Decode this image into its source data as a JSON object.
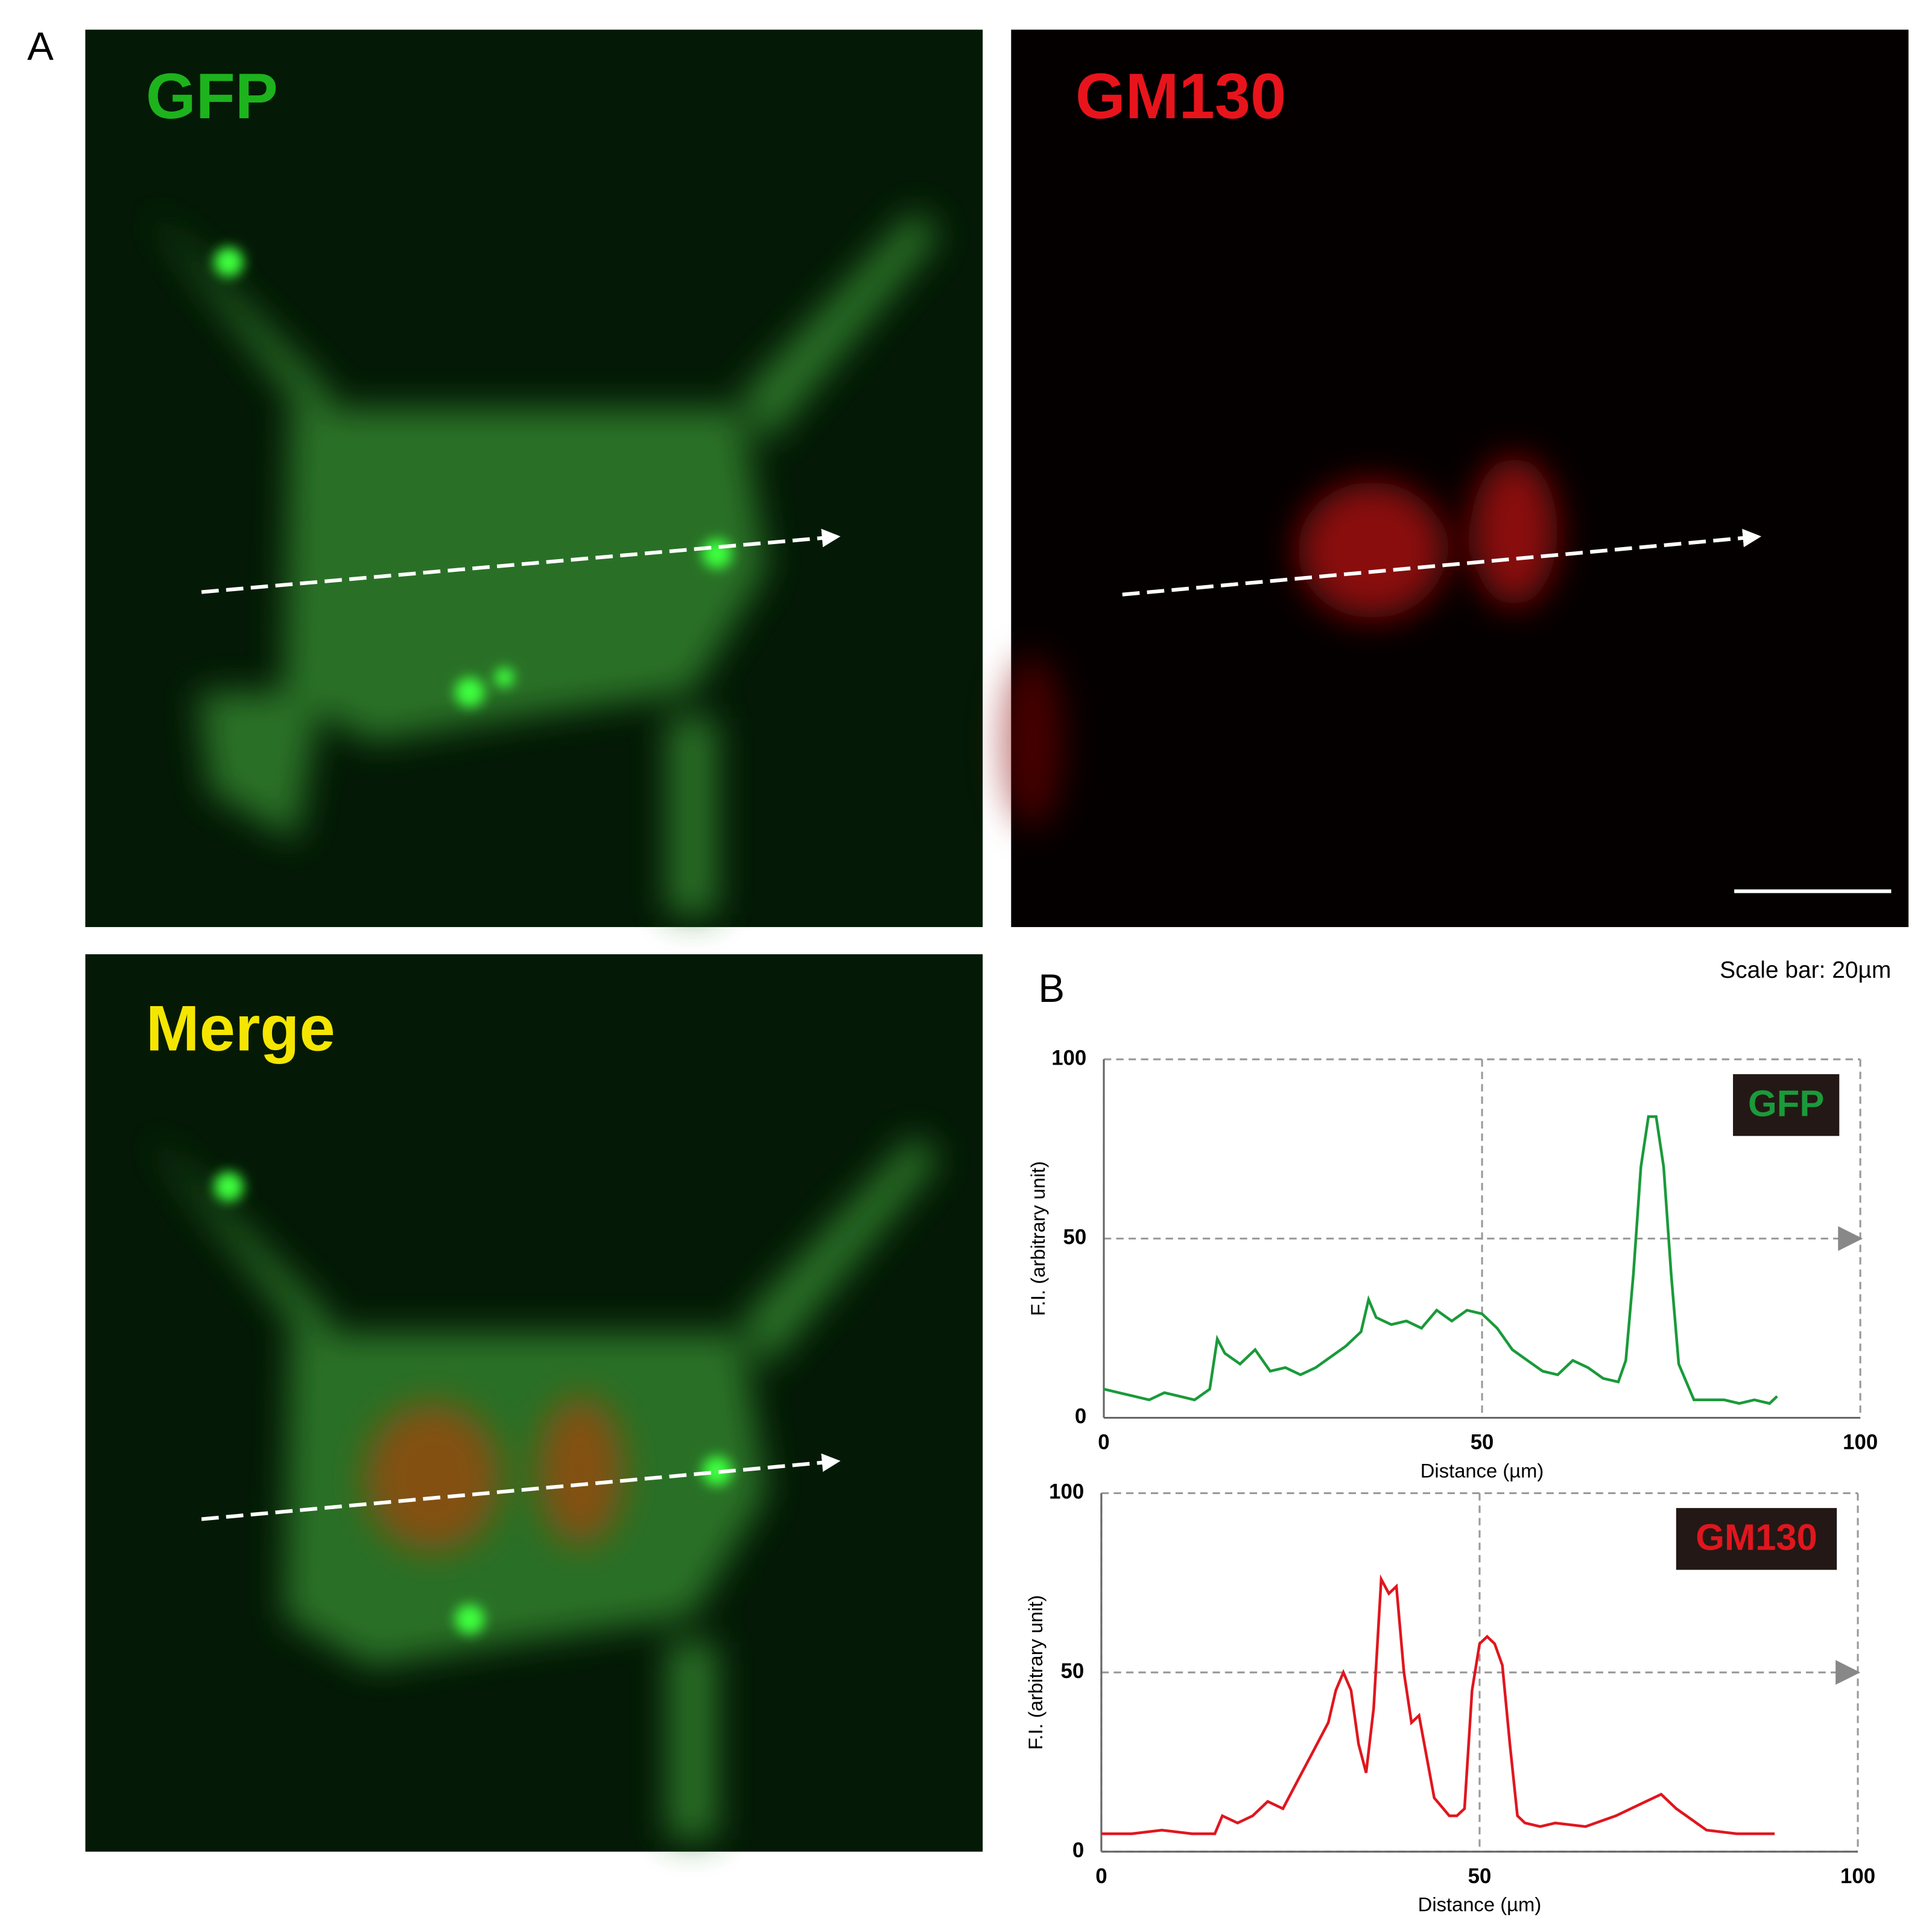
{
  "panel_labels": [
    "A",
    "B"
  ],
  "images": [
    {
      "label": "GFP"
    },
    {
      "label": "GM130"
    },
    {
      "label": "Merge"
    }
  ],
  "scale_bar": "Scale bar: 20µm",
  "chart_data": [
    {
      "type": "line",
      "xlabel": "Distance (µm)",
      "ylabel": "F.I. (arbitrary unit)",
      "xlim": [
        0,
        100
      ],
      "ylim": [
        0,
        100
      ],
      "xticks": [
        0,
        50,
        100
      ],
      "yticks": [
        0,
        50,
        100
      ],
      "grid": true,
      "legend": "upper right",
      "x": [
        0,
        2,
        4,
        6,
        8,
        10,
        12,
        14,
        15,
        16,
        18,
        20,
        22,
        24,
        26,
        28,
        30,
        32,
        34,
        35,
        36,
        38,
        40,
        42,
        44,
        46,
        48,
        50,
        52,
        54,
        56,
        58,
        60,
        62,
        64,
        66,
        68,
        69,
        70,
        71,
        72,
        73,
        74,
        75,
        76,
        78,
        80,
        82,
        84,
        86,
        88,
        89
      ],
      "series": [
        {
          "name": "GFP",
          "color": "#1a9a3a",
          "values": [
            8,
            7,
            6,
            5,
            7,
            6,
            5,
            8,
            22,
            18,
            15,
            19,
            13,
            14,
            12,
            14,
            17,
            20,
            24,
            33,
            28,
            26,
            27,
            25,
            30,
            27,
            30,
            29,
            25,
            19,
            16,
            13,
            12,
            16,
            14,
            11,
            10,
            16,
            40,
            70,
            84,
            84,
            70,
            40,
            15,
            5,
            5,
            5,
            4,
            5,
            4,
            6
          ]
        }
      ]
    },
    {
      "type": "line",
      "xlabel": "Distance (µm)",
      "ylabel": "F.I. (arbitrary unit)",
      "xlim": [
        0,
        100
      ],
      "ylim": [
        0,
        100
      ],
      "xticks": [
        0,
        50,
        100
      ],
      "yticks": [
        0,
        50,
        100
      ],
      "grid": true,
      "legend": "upper right",
      "x": [
        0,
        4,
        8,
        12,
        15,
        16,
        18,
        20,
        22,
        24,
        26,
        28,
        30,
        31,
        32,
        33,
        34,
        35,
        36,
        37,
        38,
        39,
        40,
        41,
        42,
        44,
        46,
        47,
        48,
        49,
        50,
        51,
        52,
        53,
        54,
        55,
        56,
        58,
        60,
        64,
        68,
        72,
        74,
        76,
        80,
        84,
        88,
        89
      ],
      "series": [
        {
          "name": "GM130",
          "color": "#e0161e",
          "values": [
            5,
            5,
            6,
            5,
            5,
            10,
            8,
            10,
            14,
            12,
            20,
            28,
            36,
            45,
            50,
            45,
            30,
            22,
            40,
            76,
            72,
            74,
            50,
            36,
            38,
            15,
            10,
            10,
            12,
            45,
            58,
            60,
            58,
            52,
            30,
            10,
            8,
            7,
            8,
            7,
            10,
            14,
            16,
            12,
            6,
            5,
            5,
            5
          ]
        }
      ]
    }
  ]
}
